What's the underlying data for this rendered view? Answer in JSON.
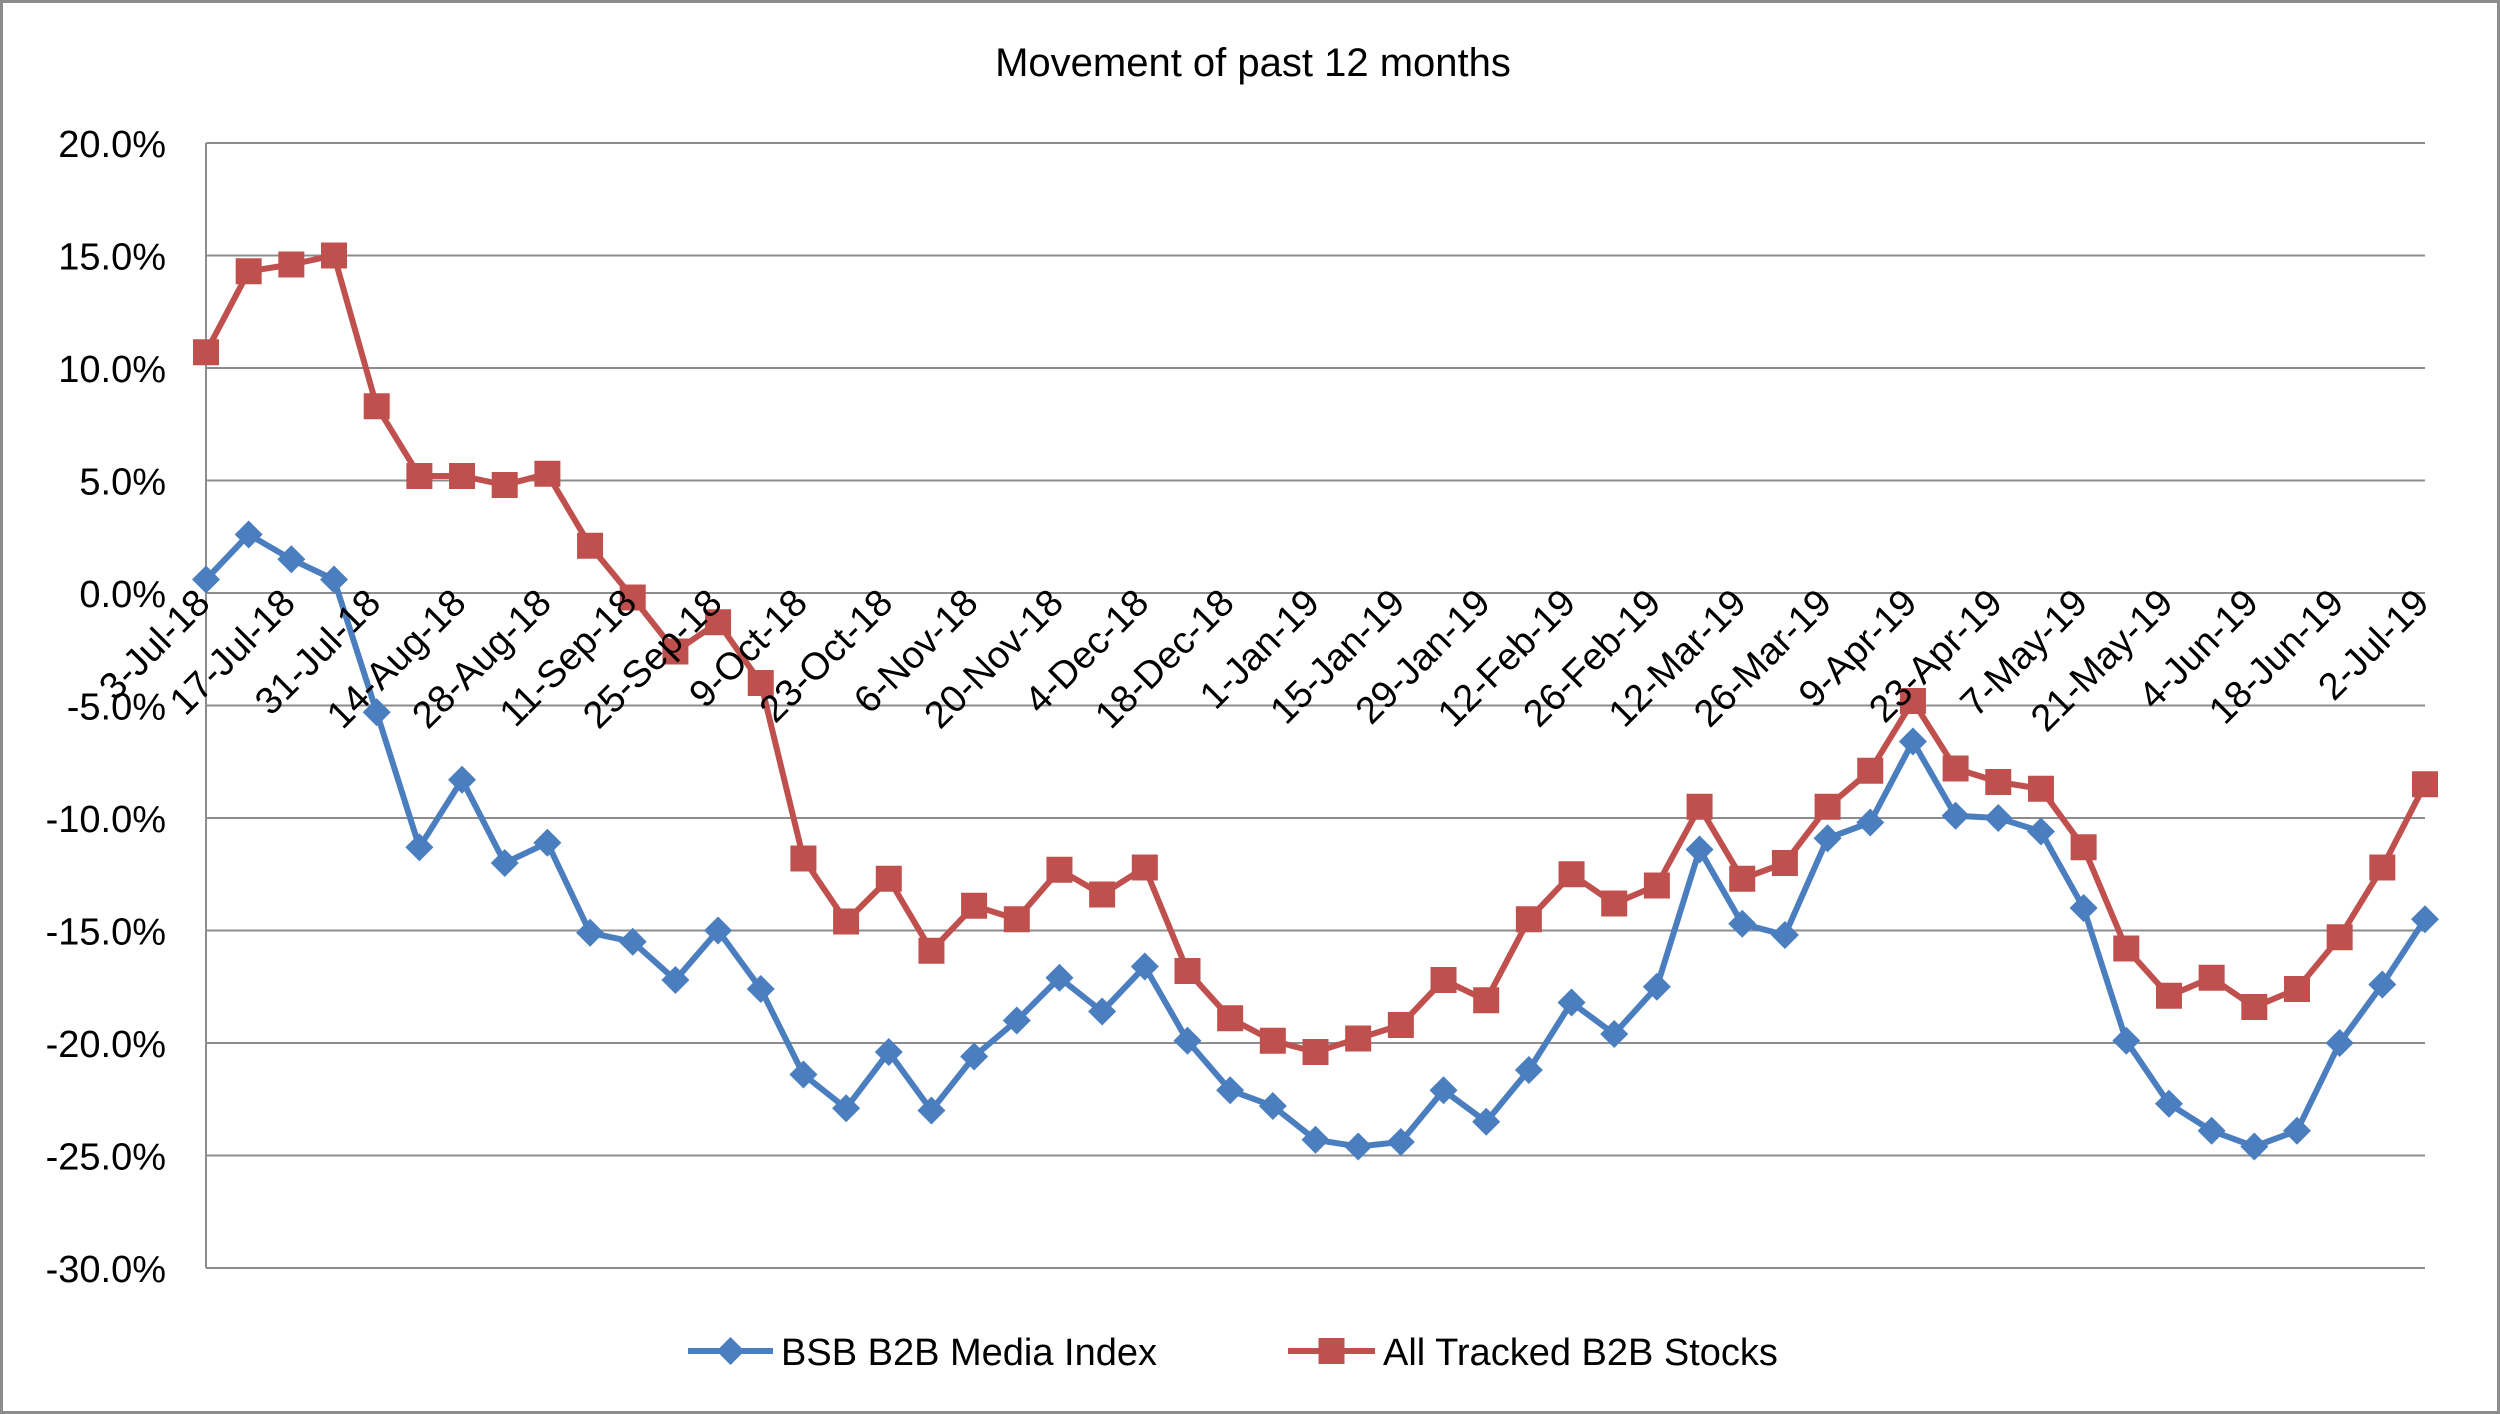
{
  "chart_data": {
    "type": "line",
    "title": "Movement of past 12 months",
    "xlabel": "",
    "ylabel": "",
    "ylim": [
      -0.3,
      0.2
    ],
    "ytick_step": 0.05,
    "ytick_labels": [
      "20.0%",
      "15.0%",
      "10.0%",
      "5.0%",
      "0.0%",
      "-5.0%",
      "-10.0%",
      "-15.0%",
      "-20.0%",
      "-25.0%",
      "-30.0%"
    ],
    "grid": "horizontal",
    "legend_position": "bottom",
    "x": [
      "3-Jul-18",
      "10-Jul-18",
      "17-Jul-18",
      "24-Jul-18",
      "31-Jul-18",
      "7-Aug-18",
      "14-Aug-18",
      "21-Aug-18",
      "28-Aug-18",
      "4-Sep-18",
      "11-Sep-18",
      "18-Sep-18",
      "25-Sep-18",
      "2-Oct-18",
      "9-Oct-18",
      "16-Oct-18",
      "23-Oct-18",
      "30-Oct-18",
      "6-Nov-18",
      "13-Nov-18",
      "20-Nov-18",
      "27-Nov-18",
      "4-Dec-18",
      "11-Dec-18",
      "18-Dec-18",
      "25-Dec-18",
      "1-Jan-19",
      "8-Jan-19",
      "15-Jan-19",
      "22-Jan-19",
      "29-Jan-19",
      "5-Feb-19",
      "12-Feb-19",
      "19-Feb-19",
      "26-Feb-19",
      "5-Mar-19",
      "12-Mar-19",
      "19-Mar-19",
      "26-Mar-19",
      "2-Apr-19",
      "9-Apr-19",
      "16-Apr-19",
      "23-Apr-19",
      "30-Apr-19",
      "7-May-19",
      "14-May-19",
      "21-May-19",
      "28-May-19",
      "4-Jun-19",
      "11-Jun-19",
      "18-Jun-19",
      "25-Jun-19",
      "2-Jul-19"
    ],
    "x_tick_labels": [
      "3-Jul-18",
      "17-Jul-18",
      "31-Jul-18",
      "14-Aug-18",
      "28-Aug-18",
      "11-Sep-18",
      "25-Sep-18",
      "9-Oct-18",
      "23-Oct-18",
      "6-Nov-18",
      "20-Nov-18",
      "4-Dec-18",
      "18-Dec-18",
      "1-Jan-19",
      "15-Jan-19",
      "29-Jan-19",
      "12-Feb-19",
      "26-Feb-19",
      "12-Mar-19",
      "26-Mar-19",
      "9-Apr-19",
      "23-Apr-19",
      "7-May-19",
      "21-May-19",
      "4-Jun-19",
      "18-Jun-19",
      "2-Jul-19"
    ],
    "series": [
      {
        "name": "BSB B2B Media Index",
        "color": "#4a7ebf",
        "marker": "diamond",
        "values": [
          0.006,
          0.026,
          0.015,
          0.006,
          -0.053,
          -0.113,
          -0.083,
          -0.12,
          -0.111,
          -0.151,
          -0.155,
          -0.172,
          -0.15,
          -0.176,
          -0.214,
          -0.229,
          -0.204,
          -0.23,
          -0.206,
          -0.19,
          -0.171,
          -0.186,
          -0.166,
          -0.199,
          -0.221,
          -0.228,
          -0.243,
          -0.246,
          -0.244,
          -0.221,
          -0.235,
          -0.212,
          -0.182,
          -0.196,
          -0.175,
          -0.114,
          -0.147,
          -0.152,
          -0.109,
          -0.102,
          -0.066,
          -0.099,
          -0.1,
          -0.106,
          -0.14,
          -0.199,
          -0.227,
          -0.239,
          -0.246,
          -0.239,
          -0.2,
          -0.174,
          -0.145
        ]
      },
      {
        "name": "All Tracked B2B Stocks",
        "color": "#c0504d",
        "marker": "square",
        "values": [
          0.107,
          0.143,
          0.146,
          0.15,
          0.083,
          0.052,
          0.052,
          0.048,
          0.053,
          0.021,
          -0.002,
          -0.026,
          -0.013,
          -0.04,
          -0.118,
          -0.146,
          -0.127,
          -0.159,
          -0.139,
          -0.145,
          -0.123,
          -0.134,
          -0.122,
          -0.168,
          -0.189,
          -0.199,
          -0.204,
          -0.198,
          -0.192,
          -0.172,
          -0.181,
          -0.145,
          -0.125,
          -0.138,
          -0.13,
          -0.095,
          -0.127,
          -0.12,
          -0.095,
          -0.079,
          -0.048,
          -0.078,
          -0.084,
          -0.087,
          -0.113,
          -0.158,
          -0.179,
          -0.171,
          -0.184,
          -0.176,
          -0.153,
          -0.122,
          -0.085
        ]
      }
    ]
  }
}
